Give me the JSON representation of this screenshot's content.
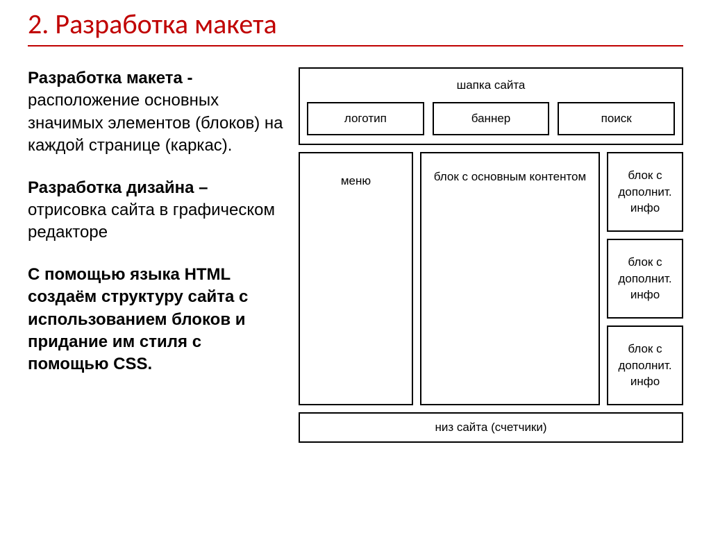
{
  "title": "2. Разработка макета",
  "paragraphs": {
    "p1_bold": "Разработка макета - ",
    "p1_rest": "расположение основных значимых элементов (блоков) на каждой странице (каркас).",
    "p2_bold": "Разработка дизайна – ",
    "p2_rest": "отрисовка сайта в графическом редакторе",
    "p3": "С помощью языка HTML создаём структуру сайта с использованием блоков и придание им стиля с помощью CSS."
  },
  "wireframe": {
    "header_title": "шапка сайта",
    "logo": "логотип",
    "banner": "баннер",
    "search": "поиск",
    "menu": "меню",
    "main": "блок с основным контентом",
    "aside1": "блок с дополнит. инфо",
    "aside2": "блок с дополнит. инфо",
    "aside3": "блок с дополнит. инфо",
    "footer": "низ сайта (счетчики)"
  },
  "colors": {
    "accent": "#c00000",
    "border": "#000000",
    "background": "#ffffff",
    "text": "#000000"
  }
}
